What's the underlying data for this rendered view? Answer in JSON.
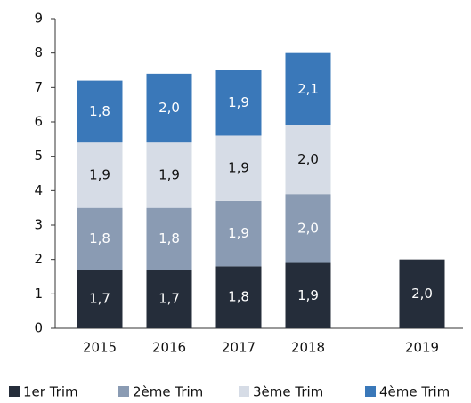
{
  "chart_data": {
    "type": "stacked_bar",
    "categories": [
      "2015",
      "2016",
      "2017",
      "2018",
      "2019"
    ],
    "series": [
      {
        "name": "1er Trim",
        "color": "#252d3a",
        "values": [
          1.7,
          1.7,
          1.8,
          1.9,
          2.0
        ],
        "value_labels": [
          "1,7",
          "1,7",
          "1,8",
          "1,9",
          "2,0"
        ]
      },
      {
        "name": "2ème Trim",
        "color": "#8a9bb3",
        "values": [
          1.8,
          1.8,
          1.9,
          2.0,
          null
        ],
        "value_labels": [
          "1,8",
          "1,8",
          "1,9",
          "2,0",
          null
        ]
      },
      {
        "name": "3ème Trim",
        "color": "#d6dce6",
        "values": [
          1.9,
          1.9,
          1.9,
          2.0,
          null
        ],
        "value_labels": [
          "1,9",
          "1,9",
          "1,9",
          "2,0",
          null
        ]
      },
      {
        "name": "4ème Trim",
        "color": "#3a78b9",
        "values": [
          1.8,
          2.0,
          1.9,
          2.1,
          null
        ],
        "value_labels": [
          "1,8",
          "2,0",
          "1,9",
          "2,1",
          null
        ]
      }
    ],
    "ylim": [
      0,
      9
    ],
    "yticks": [
      0,
      1,
      2,
      3,
      4,
      5,
      6,
      7,
      8,
      9
    ],
    "grid": false,
    "legend": "bottom"
  }
}
